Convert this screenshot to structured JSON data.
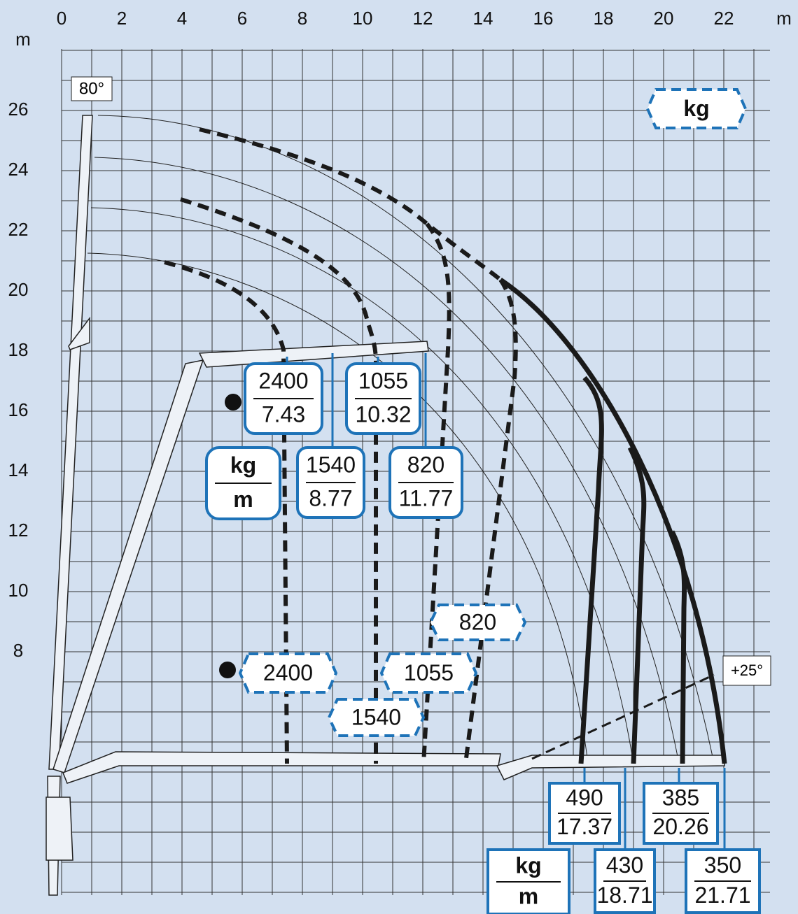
{
  "axes": {
    "x_unit": "m",
    "y_unit": "m",
    "xticks": [
      0,
      2,
      4,
      6,
      8,
      10,
      12,
      14,
      16,
      18,
      20,
      22
    ],
    "yticks": [
      26,
      24,
      22,
      20,
      18,
      16,
      14,
      12,
      10,
      8
    ]
  },
  "angles": {
    "max": "80°",
    "min": "+25°"
  },
  "legend": "kg",
  "unit_boxes": [
    {
      "kg": "kg",
      "m": "m"
    },
    {
      "kg": "kg",
      "m": "m"
    }
  ],
  "outreach_loads": [
    {
      "kg": 2400,
      "m": 7.43
    },
    {
      "kg": 1055,
      "m": 10.32
    },
    {
      "kg": 1540,
      "m": 8.77
    },
    {
      "kg": 820,
      "m": 11.77
    },
    {
      "kg": 490,
      "m": 17.37
    },
    {
      "kg": 385,
      "m": 20.26
    },
    {
      "kg": 430,
      "m": 18.71
    },
    {
      "kg": 350,
      "m": 21.71
    }
  ],
  "dashed_loads": [
    820,
    2400,
    1055,
    1540
  ]
}
